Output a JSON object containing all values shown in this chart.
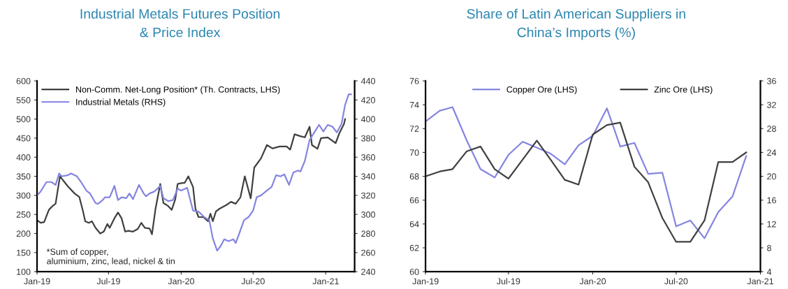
{
  "chart_data": [
    {
      "type": "line",
      "title": "Industrial Metals Futures Position\n& Price Index",
      "xlim": [
        "2019-01-01",
        "2021-03-15"
      ],
      "xticks": [
        {
          "value": "2019-01-01",
          "label": "Jan-19"
        },
        {
          "value": "2019-07-01",
          "label": "Jul-19"
        },
        {
          "value": "2020-01-01",
          "label": "Jan-20"
        },
        {
          "value": "2020-07-01",
          "label": "Jul-20"
        },
        {
          "value": "2021-01-01",
          "label": "Jan-21"
        }
      ],
      "ylim": [
        100,
        600
      ],
      "yticks": [
        100,
        150,
        200,
        250,
        300,
        350,
        400,
        450,
        500,
        550,
        600
      ],
      "y2lim": [
        240,
        440
      ],
      "y2ticks": [
        240,
        260,
        280,
        300,
        320,
        340,
        360,
        380,
        400,
        420,
        440
      ],
      "legend": "top left",
      "grid": false,
      "annotations": [
        "*Sum of copper,\naluminium, zinc, lead, nickel & tin"
      ],
      "series": [
        {
          "name": "Non-Comm. Net-Long Position* (Th. Contracts, LHS)",
          "color": "#404040",
          "x": [
            "2019-01-01",
            "2019-01-10",
            "2019-01-19",
            "2019-01-31",
            "2019-02-09",
            "2019-02-17",
            "2019-02-28",
            "2019-03-19",
            "2019-04-06",
            "2019-04-18",
            "2019-04-27",
            "2019-05-03",
            "2019-05-12",
            "2019-05-20",
            "2019-05-29",
            "2019-06-10",
            "2019-06-19",
            "2019-06-28",
            "2019-07-04",
            "2019-07-16",
            "2019-07-25",
            "2019-08-03",
            "2019-08-12",
            "2019-08-20",
            "2019-09-01",
            "2019-09-13",
            "2019-09-22",
            "2019-10-01",
            "2019-10-13",
            "2019-10-19",
            "2019-10-28",
            "2019-11-09",
            "2019-11-17",
            "2019-11-29",
            "2019-12-08",
            "2019-12-17",
            "2019-12-23",
            "2020-01-01",
            "2020-01-10",
            "2020-01-19",
            "2020-01-31",
            "2020-02-06",
            "2020-02-14",
            "2020-02-26",
            "2020-03-09",
            "2020-03-15",
            "2020-03-21",
            "2020-03-29",
            "2020-04-07",
            "2020-04-25",
            "2020-05-06",
            "2020-05-18",
            "2020-05-30",
            "2020-06-10",
            "2020-06-25",
            "2020-07-04",
            "2020-07-21",
            "2020-08-05",
            "2020-08-19",
            "2020-09-06",
            "2020-09-24",
            "2020-10-03",
            "2020-10-14",
            "2020-10-29",
            "2020-11-09",
            "2020-11-21",
            "2020-11-27",
            "2020-12-11",
            "2020-12-20",
            "2021-01-06",
            "2021-01-26",
            "2021-02-04",
            "2021-02-16",
            "2021-02-19"
          ],
          "values": [
            235,
            228,
            230,
            262,
            272,
            278,
            350,
            325,
            305,
            296,
            260,
            232,
            228,
            232,
            215,
            200,
            205,
            225,
            215,
            240,
            255,
            240,
            205,
            207,
            205,
            212,
            228,
            215,
            213,
            198,
            265,
            330,
            280,
            272,
            262,
            290,
            330,
            332,
            333,
            350,
            322,
            265,
            243,
            243,
            232,
            252,
            232,
            258,
            265,
            275,
            283,
            278,
            295,
            350,
            292,
            373,
            397,
            432,
            423,
            428,
            428,
            420,
            460,
            455,
            452,
            480,
            432,
            422,
            450,
            452,
            437,
            462,
            487,
            500
          ]
        },
        {
          "name": "Industrial Metals (RHS)",
          "color": "#8585e0",
          "axis": "y2",
          "x": [
            "2019-01-01",
            "2019-01-10",
            "2019-01-25",
            "2019-02-06",
            "2019-02-17",
            "2019-02-26",
            "2019-03-04",
            "2019-03-19",
            "2019-03-28",
            "2019-04-12",
            "2019-04-24",
            "2019-05-06",
            "2019-05-15",
            "2019-05-29",
            "2019-06-04",
            "2019-06-16",
            "2019-06-22",
            "2019-07-04",
            "2019-07-16",
            "2019-07-25",
            "2019-08-03",
            "2019-08-15",
            "2019-08-23",
            "2019-09-01",
            "2019-09-16",
            "2019-09-28",
            "2019-10-04",
            "2019-10-13",
            "2019-10-25",
            "2019-11-09",
            "2019-11-17",
            "2019-11-29",
            "2019-12-11",
            "2019-12-23",
            "2020-01-01",
            "2020-01-16",
            "2020-01-31",
            "2020-02-14",
            "2020-02-29",
            "2020-03-12",
            "2020-03-21",
            "2020-04-01",
            "2020-04-10",
            "2020-04-19",
            "2020-04-30",
            "2020-05-12",
            "2020-05-18",
            "2020-05-27",
            "2020-06-08",
            "2020-06-19",
            "2020-07-01",
            "2020-07-10",
            "2020-07-21",
            "2020-08-02",
            "2020-08-17",
            "2020-08-28",
            "2020-09-09",
            "2020-09-18",
            "2020-09-30",
            "2020-10-11",
            "2020-10-23",
            "2020-10-29",
            "2020-11-09",
            "2020-11-21",
            "2020-11-30",
            "2020-12-15",
            "2020-12-26",
            "2021-01-06",
            "2021-01-18",
            "2021-01-29",
            "2021-02-10",
            "2021-02-19",
            "2021-02-28",
            "2021-03-06"
          ],
          "values": [
            320,
            324,
            334,
            334,
            331,
            343,
            340,
            341,
            343,
            340,
            333,
            325,
            322,
            312,
            311,
            315,
            318,
            318,
            330,
            315,
            318,
            317,
            322,
            316,
            331,
            322,
            319,
            322,
            324,
            330,
            317,
            314,
            315,
            327,
            325,
            328,
            304,
            303,
            297,
            294,
            275,
            262,
            267,
            274,
            272,
            274,
            270,
            280,
            294,
            297,
            304,
            318,
            320,
            324,
            329,
            341,
            340,
            342,
            331,
            344,
            346,
            345,
            356,
            378,
            384,
            394,
            387,
            394,
            392,
            386,
            395,
            415,
            426,
            426
          ]
        }
      ]
    },
    {
      "type": "line",
      "title": "Share of Latin American Suppliers in\nChina’s Imports (%)",
      "xlim": [
        "2019-01-01",
        "2021-01-01"
      ],
      "xticks": [
        {
          "value": "2019-01-01",
          "label": "Jan-19"
        },
        {
          "value": "2019-07-01",
          "label": "Jul-19"
        },
        {
          "value": "2020-01-01",
          "label": "Jan-20"
        },
        {
          "value": "2020-07-01",
          "label": "Jul-20"
        },
        {
          "value": "2021-01-01",
          "label": "Jan-21"
        }
      ],
      "ylim": [
        60,
        76
      ],
      "yticks": [
        60,
        62,
        64,
        66,
        68,
        70,
        72,
        74,
        76
      ],
      "y2lim": [
        4,
        36
      ],
      "y2ticks": [
        4,
        8,
        12,
        16,
        20,
        24,
        28,
        32,
        36
      ],
      "legend": "top",
      "grid": false,
      "x": [
        "2019-01",
        "2019-02",
        "2019-03",
        "2019-04",
        "2019-05",
        "2019-06",
        "2019-07",
        "2019-08",
        "2019-09",
        "2019-10",
        "2019-11",
        "2019-12",
        "2020-01",
        "2020-02",
        "2020-03",
        "2020-04",
        "2020-05",
        "2020-06",
        "2020-07",
        "2020-08",
        "2020-09",
        "2020-10",
        "2020-11",
        "2020-12"
      ],
      "series": [
        {
          "name": "Copper Ore (LHS)",
          "color": "#8585e0",
          "values": [
            72.6,
            73.5,
            73.8,
            71.0,
            68.6,
            67.9,
            69.8,
            70.9,
            70.4,
            69.9,
            69.0,
            70.6,
            71.4,
            73.7,
            70.5,
            70.8,
            68.2,
            68.3,
            63.8,
            64.3,
            62.8,
            65.0,
            66.3,
            69.7
          ]
        },
        {
          "name": "Zinc Ore (LHS)",
          "color": "#404040",
          "values": [
            68.0,
            68.4,
            68.6,
            70.1,
            70.5,
            68.6,
            67.8,
            69.4,
            71.0,
            69.4,
            67.7,
            67.3,
            71.5,
            72.3,
            72.5,
            68.8,
            67.5,
            64.5,
            62.5,
            62.5,
            64.3,
            69.2,
            69.2,
            70.0
          ]
        }
      ]
    }
  ]
}
